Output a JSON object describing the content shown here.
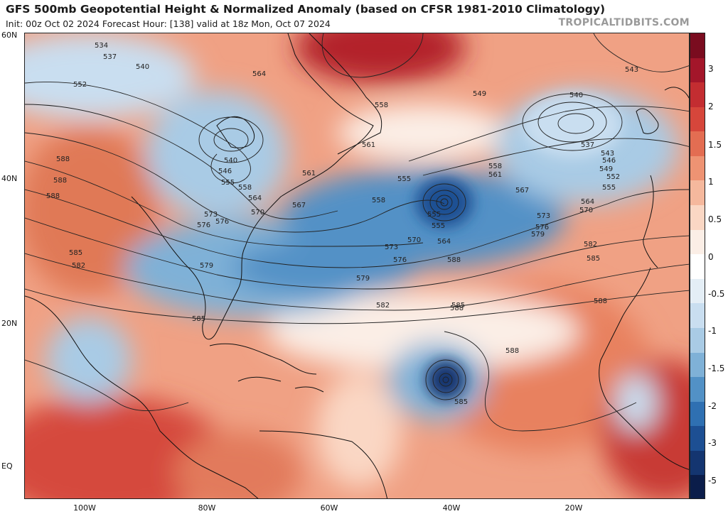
{
  "header": {
    "title": "GFS 500mb Geopotential Height & Normalized Anomaly (based on CFSR 1981-2010 Climatology)",
    "subtitle": "Init: 00z Oct 02 2024   Forecast Hour: [138]   valid at 18z Mon, Oct 07 2024",
    "credit": "TROPICALTIDBITS.COM"
  },
  "axes": {
    "lat_labels": [
      "60N",
      "40N",
      "20N",
      "EQ"
    ],
    "lon_labels": [
      "100W",
      "80W",
      "60W",
      "40W",
      "20W"
    ]
  },
  "colorbar": {
    "labels": [
      "3",
      "2",
      "1.5",
      "1",
      "0.5",
      "0",
      "-0.5",
      "-1",
      "-1.5",
      "-2",
      "-3",
      "-5"
    ],
    "colors": [
      "#7a0c1f",
      "#a3162a",
      "#c32d31",
      "#d6463b",
      "#e36d52",
      "#ee9373",
      "#f5b89d",
      "#fad7c4",
      "#fbeee6",
      "#ffffff",
      "#e4eef6",
      "#c9def0",
      "#a9cbe5",
      "#7fb1d7",
      "#5291c6",
      "#2f70b2",
      "#1d4f93",
      "#143570",
      "#0b1d4a"
    ]
  },
  "contours": {
    "labels": [
      "534",
      "537",
      "540",
      "552",
      "540",
      "546",
      "555",
      "558",
      "564",
      "567",
      "570",
      "573",
      "576",
      "576",
      "579",
      "582",
      "585",
      "588",
      "588",
      "588",
      "585",
      "564",
      "558",
      "561",
      "561",
      "555",
      "558",
      "555",
      "555",
      "564",
      "570",
      "573",
      "576",
      "579",
      "582",
      "585",
      "588",
      "588",
      "585",
      "588",
      "549",
      "543",
      "540",
      "537",
      "543",
      "546",
      "549",
      "552",
      "555",
      "558",
      "561",
      "564",
      "567",
      "570",
      "573",
      "576",
      "579",
      "582",
      "585",
      "588"
    ],
    "color": "#222222"
  },
  "features": {
    "cyclone_center_label": "585"
  }
}
